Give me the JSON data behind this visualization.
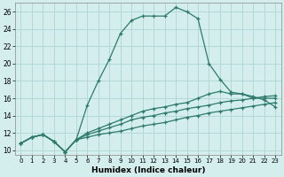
{
  "xlabel": "Humidex (Indice chaleur)",
  "background_color": "#d4eeed",
  "grid_color": "#b2d8d5",
  "line_color": "#2d7a6a",
  "xlim": [
    -0.5,
    23.5
  ],
  "ylim": [
    9.5,
    27
  ],
  "xticks": [
    0,
    1,
    2,
    3,
    4,
    5,
    6,
    7,
    8,
    9,
    10,
    11,
    12,
    13,
    14,
    15,
    16,
    17,
    18,
    19,
    20,
    21,
    22,
    23
  ],
  "yticks": [
    10,
    12,
    14,
    16,
    18,
    20,
    22,
    24,
    26
  ],
  "line1_y": [
    10.8,
    11.5,
    11.8,
    11.0,
    9.8,
    11.2,
    15.2,
    18.0,
    20.5,
    23.5,
    25.0,
    25.5,
    25.5,
    25.5,
    26.5,
    26.0,
    25.2,
    20.0,
    18.2,
    16.7,
    16.5,
    16.2,
    15.8,
    15.0
  ],
  "line2_y": [
    10.8,
    11.5,
    11.8,
    11.0,
    9.8,
    11.2,
    12.0,
    12.5,
    13.0,
    13.5,
    14.0,
    14.5,
    14.8,
    15.0,
    15.3,
    15.5,
    16.0,
    16.5,
    16.8,
    16.5,
    16.5,
    16.0,
    16.0,
    16.0
  ],
  "line3_y": [
    10.8,
    11.5,
    11.8,
    11.0,
    9.8,
    11.2,
    11.8,
    12.2,
    12.6,
    13.0,
    13.5,
    13.8,
    14.0,
    14.3,
    14.5,
    14.8,
    15.0,
    15.2,
    15.5,
    15.7,
    15.8,
    16.0,
    16.2,
    16.3
  ],
  "line4_y": [
    10.8,
    11.5,
    11.8,
    11.0,
    9.8,
    11.2,
    11.5,
    11.8,
    12.0,
    12.2,
    12.5,
    12.8,
    13.0,
    13.2,
    13.5,
    13.8,
    14.0,
    14.3,
    14.5,
    14.7,
    14.9,
    15.1,
    15.3,
    15.5
  ]
}
